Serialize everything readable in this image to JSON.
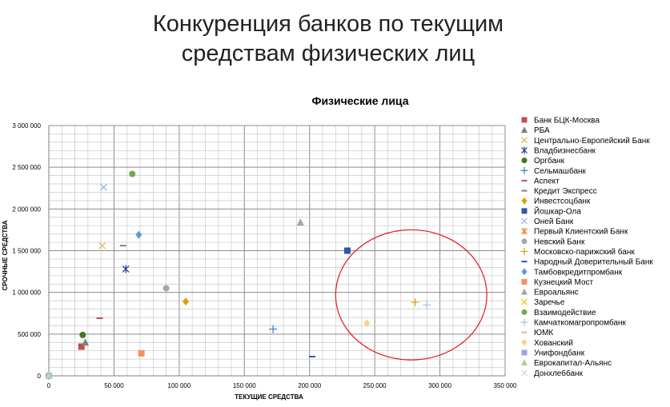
{
  "slide": {
    "title_line1": "Конкуренция банков по текущим",
    "title_line2": "средствам физических лиц"
  },
  "chart_data": {
    "type": "scatter",
    "title": "Физические лица",
    "xlabel": "ТЕКУЩИЕ СРЕДСТВА",
    "ylabel": "СРОЧНЫЕ СРЕДСТВА",
    "xlim": [
      0,
      350000
    ],
    "ylim": [
      0,
      3000000
    ],
    "x_ticks": [
      "0",
      "50 000",
      "100 000",
      "150 000",
      "200 000",
      "250 000",
      "300 000",
      "350 000"
    ],
    "y_ticks": [
      "0",
      "500 000",
      "1 000 000",
      "1 500 000",
      "2 000 000",
      "2 500 000",
      "3 000 000"
    ],
    "grid": true,
    "legend_position": "right",
    "highlight_ellipse": {
      "cx": 278000,
      "cy": 970000,
      "rx": 58000,
      "ry": 780000,
      "color": "#e31a1c"
    },
    "series": [
      {
        "name": "Банк БЦК-Москва",
        "marker": "square",
        "color": "#c0504d",
        "x": 25000,
        "y": 350000
      },
      {
        "name": "РБА",
        "marker": "triangle",
        "color": "#7f7f7f",
        "x": 28000,
        "y": 400000
      },
      {
        "name": "Центрально-Европейский Банк",
        "marker": "x",
        "color": "#e6b35c",
        "x": 41000,
        "y": 1560000
      },
      {
        "name": "Владбизнесбанк",
        "marker": "star",
        "color": "#1f3f8f",
        "x": 59000,
        "y": 1280000
      },
      {
        "name": "Оргбанк",
        "marker": "circle",
        "color": "#3a7a28",
        "x": 26000,
        "y": 490000
      },
      {
        "name": "Сельмашбанк",
        "marker": "plus",
        "color": "#4472c4",
        "x": 172000,
        "y": 560000
      },
      {
        "name": "Аспект",
        "marker": "dash",
        "color": "#c0504d",
        "x": 39000,
        "y": 690000
      },
      {
        "name": "Кредит Экспресс",
        "marker": "dash",
        "color": "#7f7f7f",
        "x": 57000,
        "y": 1560000
      },
      {
        "name": "Инвестсоцбанк",
        "marker": "diamond",
        "color": "#e0a000",
        "x": 105000,
        "y": 890000
      },
      {
        "name": "Йошкар-Ола",
        "marker": "square",
        "color": "#2e58a6",
        "x": 229000,
        "y": 1500000
      },
      {
        "name": "Оней Банк",
        "marker": "x",
        "color": "#8db3e2",
        "x": 42000,
        "y": 2260000
      },
      {
        "name": "Первый Клиентский Банк",
        "marker": "star",
        "color": "#e67e22",
        "x": 0,
        "y": 0
      },
      {
        "name": "Невский Банк",
        "marker": "circle",
        "color": "#a6a6a6",
        "x": 90000,
        "y": 1050000
      },
      {
        "name": "Московско-парижский банк",
        "marker": "plus",
        "color": "#e0a000",
        "x": 281000,
        "y": 880000
      },
      {
        "name": "Народный Доверительный Банк",
        "marker": "dash",
        "color": "#2e58a6",
        "x": 202000,
        "y": 230000
      },
      {
        "name": "Тамбовкредитпромбанк",
        "marker": "diamond",
        "color": "#5b9bd5",
        "x": 69000,
        "y": 1690000
      },
      {
        "name": "Кузнецкий Мост",
        "marker": "square",
        "color": "#f4915b",
        "x": 71000,
        "y": 270000
      },
      {
        "name": "Евроальянс",
        "marker": "triangle",
        "color": "#a6a6a6",
        "x": 193000,
        "y": 1840000
      },
      {
        "name": "Заречье",
        "marker": "x",
        "color": "#ffc000",
        "x": 0,
        "y": 0
      },
      {
        "name": "Взаимодействие",
        "marker": "circle",
        "color": "#70ad47",
        "x": 64000,
        "y": 2420000
      },
      {
        "name": "Камчаткомагропромбанк",
        "marker": "plus",
        "color": "#9dc3e6",
        "x": 290000,
        "y": 850000
      },
      {
        "name": "ЮМК",
        "marker": "dash",
        "color": "#f4b183",
        "x": 0,
        "y": 0
      },
      {
        "name": "Хованский",
        "marker": "diamond",
        "color": "#ffd08a",
        "x": 244000,
        "y": 630000
      },
      {
        "name": "Унифондбанк",
        "marker": "square",
        "color": "#8faadc",
        "x": 0,
        "y": 0
      },
      {
        "name": "Еврокапитал-Альянс",
        "marker": "triangle",
        "color": "#a9d18e",
        "x": 0,
        "y": 0
      },
      {
        "name": "Донхлеббанк",
        "marker": "x",
        "color": "#c5d6ea",
        "x": 0,
        "y": 0
      }
    ]
  }
}
